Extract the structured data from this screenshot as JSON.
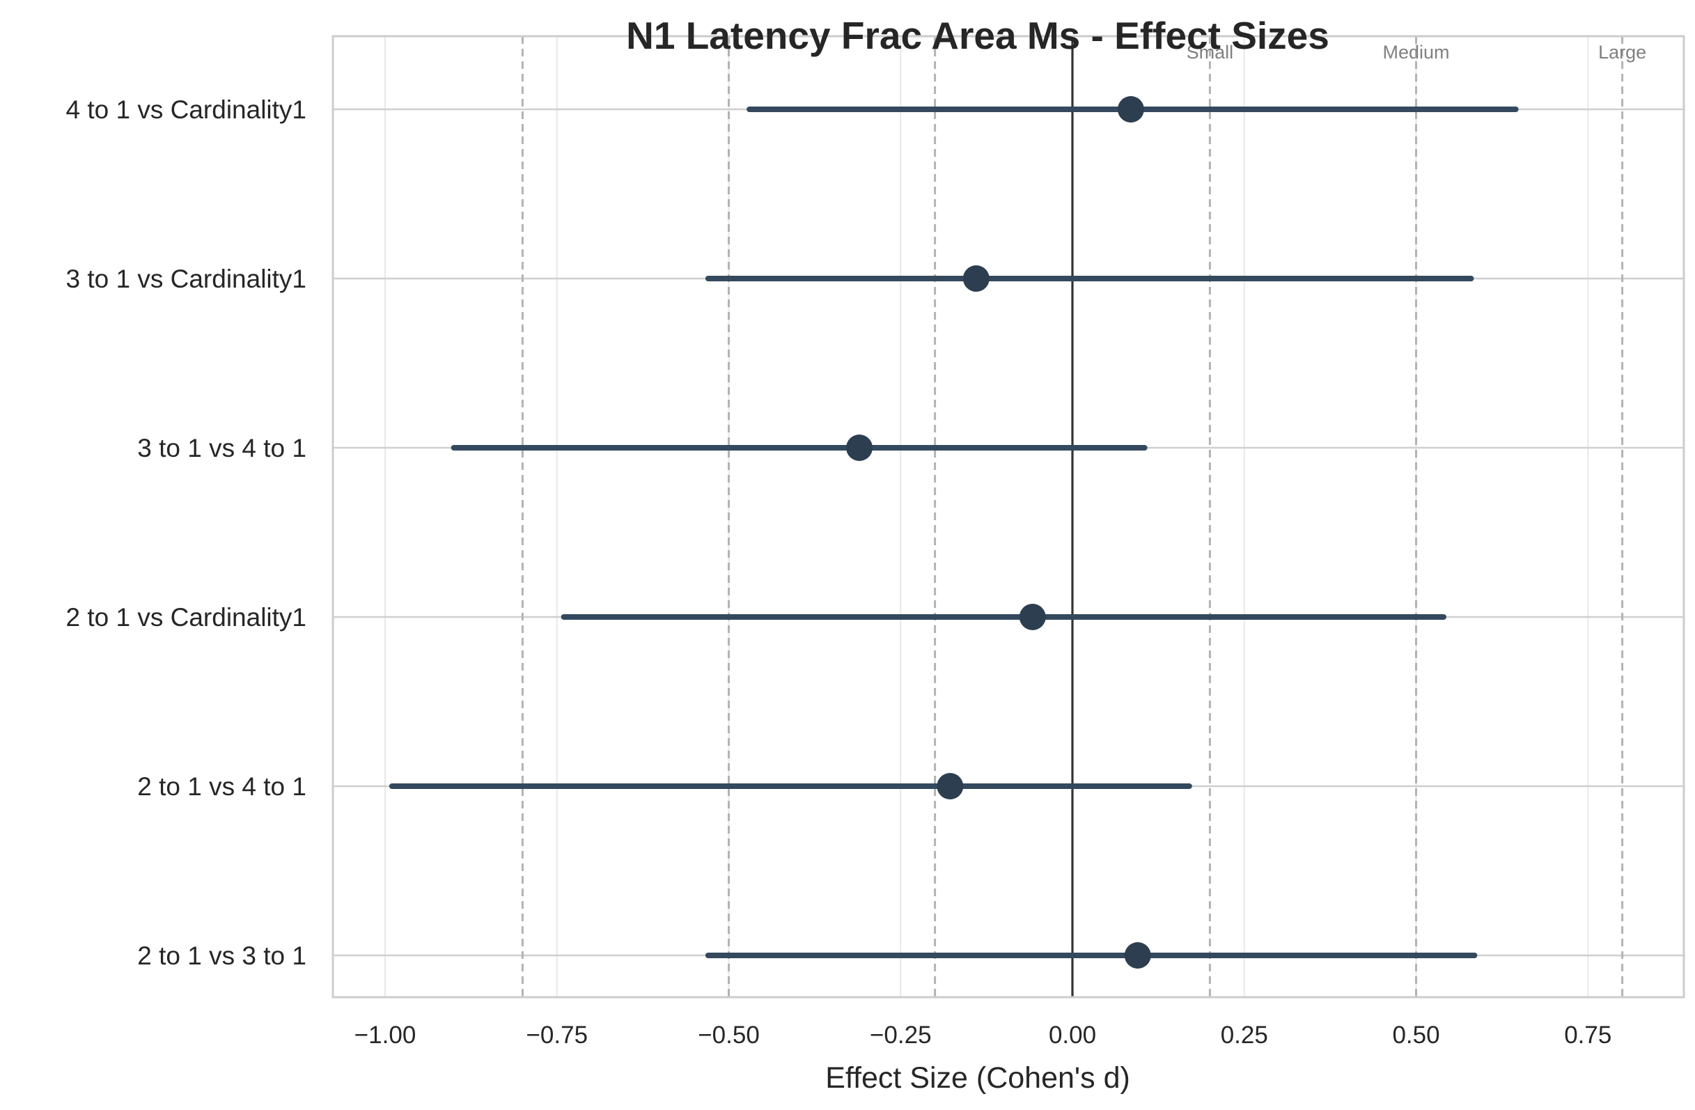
{
  "chart_data": {
    "type": "forest",
    "title": "N1 Latency Frac Area Ms - Effect Sizes",
    "xlabel": "Effect Size (Cohen's d)",
    "xlim": [
      -1.07,
      0.88
    ],
    "xticks": [
      -1.0,
      -0.75,
      -0.5,
      -0.25,
      0.0,
      0.25,
      0.5,
      0.75
    ],
    "xtick_labels": [
      "−1.00",
      "−0.75",
      "−0.50",
      "−0.25",
      "0.00",
      "0.25",
      "0.50",
      "0.75"
    ],
    "grid": true,
    "zero_line": 0.0,
    "thresholds": [
      {
        "label": "Small",
        "value": 0.2
      },
      {
        "label": "Medium",
        "value": 0.5
      },
      {
        "label": "Large",
        "value": 0.8
      }
    ],
    "negative_thresholds": [
      -0.2,
      -0.5,
      -0.8
    ],
    "comparisons": [
      {
        "label": "4 to 1 vs Cardinality1",
        "d": 0.085,
        "ci_low": -0.47,
        "ci_high": 0.645
      },
      {
        "label": "3 to 1 vs Cardinality1",
        "d": -0.14,
        "ci_low": -0.53,
        "ci_high": 0.58
      },
      {
        "label": "3 to 1 vs 4 to 1",
        "d": -0.31,
        "ci_low": -0.9,
        "ci_high": 0.105
      },
      {
        "label": "2 to 1 vs Cardinality1",
        "d": -0.058,
        "ci_low": -0.74,
        "ci_high": 0.54
      },
      {
        "label": "2 to 1 vs 4 to 1",
        "d": -0.178,
        "ci_low": -0.99,
        "ci_high": 0.17
      },
      {
        "label": "2 to 1 vs 3 to 1",
        "d": 0.095,
        "ci_low": -0.53,
        "ci_high": 0.585
      }
    ],
    "colors": {
      "point": "#2c3e50",
      "ci_line": "#34495e",
      "zero_line": "#333333",
      "threshold_line": "#b3b3b3",
      "grid": "#e8e8e8",
      "frame": "#cccccc"
    }
  }
}
